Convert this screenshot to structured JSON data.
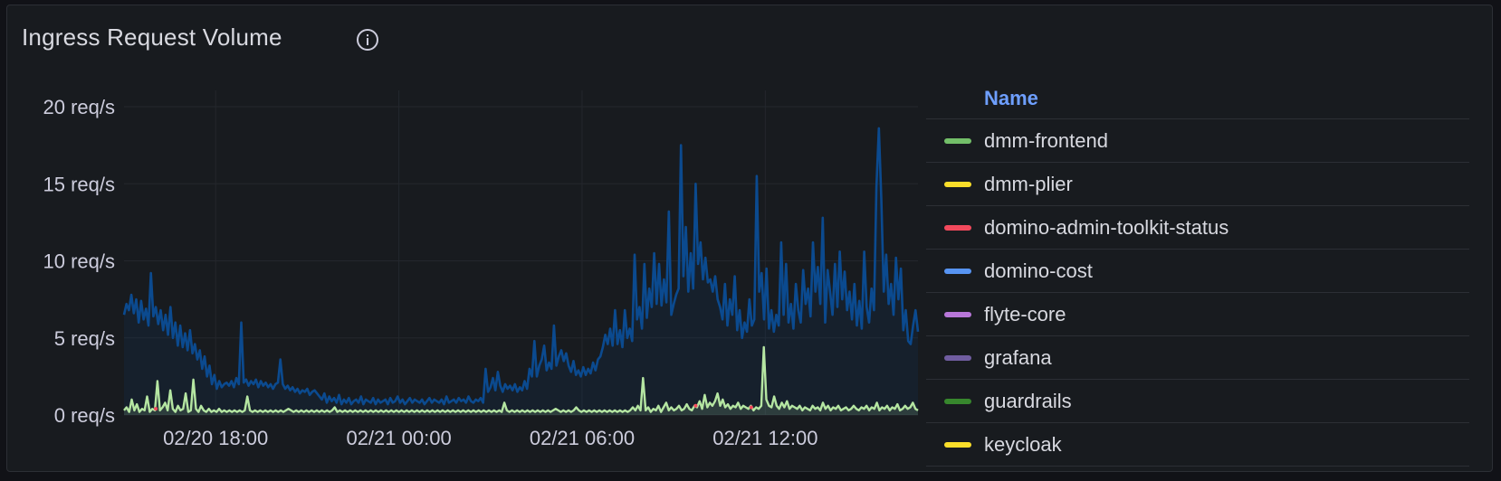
{
  "panel": {
    "title": "Ingress Request Volume"
  },
  "legend": {
    "header": "Name"
  },
  "chart_data": {
    "type": "area",
    "title": "Ingress Request Volume",
    "y_unit": "req/s",
    "ylim": [
      0,
      20
    ],
    "y_ticks": [
      {
        "value": 20,
        "label": "20 req/s"
      },
      {
        "value": 15,
        "label": "15 req/s"
      },
      {
        "value": 10,
        "label": "10 req/s"
      },
      {
        "value": 5,
        "label": "5 req/s"
      },
      {
        "value": 0,
        "label": "0 req/s"
      }
    ],
    "x_range": [
      "02/20 15:00",
      "02/21 17:00"
    ],
    "x_ticks": [
      "02/20 18:00",
      "02/21 00:00",
      "02/21 06:00",
      "02/21 12:00"
    ],
    "grid": true,
    "legend_placement": "right",
    "series": [
      {
        "name": "dmm-frontend",
        "color": "#73bf69"
      },
      {
        "name": "dmm-plier",
        "color": "#fade2a"
      },
      {
        "name": "domino-admin-toolkit-status",
        "color": "#f2495c"
      },
      {
        "name": "domino-cost",
        "color": "#5794f2"
      },
      {
        "name": "flyte-core",
        "color": "#b877d9"
      },
      {
        "name": "grafana",
        "color": "#705da0"
      },
      {
        "name": "guardrails",
        "color": "#37872d"
      },
      {
        "name": "keycloak",
        "color": "#fade2a"
      }
    ],
    "plotted_series": [
      {
        "color": "#0b4a8f",
        "values": [
          6.5,
          7.2,
          6.8,
          7.8,
          6.6,
          7.5,
          6.0,
          7.4,
          6.2,
          6.9,
          5.8,
          9.2,
          6.4,
          7.0,
          5.9,
          6.8,
          5.5,
          6.5,
          5.2,
          7.0,
          5.0,
          6.0,
          4.5,
          5.8,
          4.4,
          5.3,
          4.2,
          5.5,
          4.0,
          4.6,
          3.6,
          4.2,
          3.0,
          3.8,
          2.5,
          3.2,
          2.0,
          2.6,
          1.7,
          2.2,
          1.8,
          2.0,
          2.1,
          1.9,
          2.2,
          1.8,
          2.4,
          2.0,
          6.0,
          2.1,
          2.3,
          1.9,
          2.2,
          2.0,
          2.3,
          1.8,
          2.2,
          1.9,
          2.1,
          1.8,
          2.0,
          1.7,
          2.0,
          2.1,
          3.6,
          2.0,
          1.7,
          1.9,
          1.6,
          1.8,
          1.5,
          1.7,
          1.4,
          1.6,
          1.5,
          1.7,
          1.3,
          1.5,
          1.6,
          1.4,
          1.2,
          1.0,
          1.4,
          0.8,
          1.2,
          0.9,
          1.1,
          0.8,
          1.3,
          0.7,
          1.0,
          0.8,
          1.1,
          0.7,
          0.9,
          1.0,
          0.8,
          1.2,
          0.7,
          1.0,
          0.9,
          0.8,
          1.1,
          0.7,
          1.0,
          0.8,
          0.9,
          1.0,
          0.7,
          1.1,
          0.8,
          0.9,
          1.2,
          0.8,
          1.0,
          0.7,
          0.9,
          1.1,
          0.8,
          1.0,
          0.9,
          0.8,
          1.0,
          0.7,
          0.9,
          1.1,
          0.8,
          1.0,
          0.9,
          0.8,
          1.0,
          0.7,
          1.2,
          0.8,
          0.9,
          1.0,
          0.8,
          1.1,
          0.9,
          1.0,
          0.8,
          1.2,
          0.9,
          0.8,
          1.0,
          0.9,
          1.1,
          0.8,
          3.0,
          1.5,
          1.8,
          2.4,
          1.6,
          2.8,
          1.9,
          1.5,
          2.0,
          1.7,
          1.9,
          1.6,
          2.0,
          1.5,
          1.8,
          1.6,
          2.2,
          1.7,
          3.0,
          2.5,
          4.8,
          2.5,
          3.2,
          3.6,
          4.5,
          2.9,
          3.4,
          3.0,
          5.8,
          3.2,
          3.8,
          4.2,
          3.5,
          4.0,
          3.2,
          2.8,
          3.5,
          2.6,
          2.9,
          2.5,
          3.1,
          2.6,
          3.0,
          2.7,
          3.4,
          2.9,
          3.6,
          3.8,
          4.4,
          5.2,
          4.6,
          5.6,
          4.5,
          6.8,
          4.6,
          5.5,
          4.4,
          6.8,
          5.0,
          5.6,
          4.8,
          10.4,
          6.2,
          7.0,
          5.6,
          9.8,
          6.3,
          8.2,
          7.0,
          10.5,
          7.2,
          9.8,
          7.1,
          8.8,
          7.3,
          13.2,
          6.5,
          7.2,
          7.8,
          8.2,
          17.5,
          9.0,
          12.2,
          8.0,
          10.5,
          8.2,
          15.0,
          9.8,
          11.2,
          8.8,
          10.2,
          8.6,
          8.8,
          8.0,
          9.0,
          7.5,
          7.0,
          6.2,
          8.5,
          5.8,
          7.5,
          6.5,
          9.0,
          5.5,
          6.8,
          5.0,
          6.0,
          5.4,
          7.5,
          5.8,
          6.2,
          15.5,
          8.0,
          9.2,
          6.2,
          9.5,
          5.6,
          6.8,
          5.4,
          6.5,
          5.8,
          11.2,
          6.5,
          9.8,
          6.0,
          7.2,
          5.6,
          8.5,
          6.8,
          6.0,
          9.4,
          7.2,
          8.2,
          6.4,
          11.2,
          8.0,
          9.6,
          7.2,
          12.8,
          6.0,
          9.4,
          8.0,
          6.5,
          9.8,
          7.0,
          10.6,
          7.5,
          9.3,
          6.8,
          8.0,
          6.2,
          8.5,
          5.8,
          7.4,
          5.6,
          10.6,
          7.0,
          6.0,
          8.2,
          6.8,
          14.8,
          18.6,
          14.0,
          8.0,
          10.4,
          7.2,
          8.5,
          6.5,
          10.2,
          7.5,
          9.5,
          5.5,
          6.8,
          4.8,
          4.6,
          5.8,
          6.8,
          5.4
        ]
      },
      {
        "color": "#b5e6a2",
        "values": [
          0.3,
          0.5,
          0.2,
          1.0,
          0.3,
          0.7,
          0.2,
          0.4,
          0.3,
          1.2,
          0.2,
          0.4,
          0.3,
          2.2,
          0.3,
          0.5,
          0.8,
          0.3,
          1.6,
          0.4,
          0.2,
          0.6,
          0.3,
          0.4,
          1.4,
          0.2,
          0.3,
          2.3,
          0.4,
          0.2,
          0.6,
          0.3,
          0.2,
          0.4,
          0.2,
          0.3,
          0.2,
          0.4,
          0.2,
          0.3,
          0.2,
          0.3,
          0.2,
          0.3,
          0.2,
          0.3,
          0.2,
          0.3,
          1.2,
          0.3,
          0.2,
          0.3,
          0.2,
          0.3,
          0.2,
          0.3,
          0.2,
          0.3,
          0.2,
          0.3,
          0.2,
          0.3,
          0.2,
          0.3,
          0.4,
          0.3,
          0.2,
          0.3,
          0.2,
          0.3,
          0.2,
          0.3,
          0.2,
          0.3,
          0.2,
          0.3,
          0.2,
          0.3,
          0.2,
          0.3,
          0.2,
          0.3,
          0.5,
          0.2,
          0.3,
          0.2,
          0.3,
          0.2,
          0.3,
          0.2,
          0.3,
          0.2,
          0.3,
          0.2,
          0.3,
          0.2,
          0.3,
          0.2,
          0.3,
          0.2,
          0.3,
          0.2,
          0.3,
          0.2,
          0.3,
          0.2,
          0.3,
          0.2,
          0.3,
          0.2,
          0.3,
          0.2,
          0.3,
          0.2,
          0.3,
          0.2,
          0.3,
          0.2,
          0.3,
          0.2,
          0.3,
          0.2,
          0.3,
          0.2,
          0.3,
          0.2,
          0.3,
          0.2,
          0.3,
          0.2,
          0.3,
          0.2,
          0.3,
          0.2,
          0.3,
          0.2,
          0.3,
          0.2,
          0.3,
          0.2,
          0.3,
          0.2,
          0.3,
          0.2,
          0.3,
          0.2,
          0.3,
          0.2,
          0.8,
          0.3,
          0.2,
          0.3,
          0.2,
          0.3,
          0.2,
          0.3,
          0.2,
          0.3,
          0.2,
          0.3,
          0.2,
          0.3,
          0.2,
          0.3,
          0.2,
          0.3,
          0.2,
          0.3,
          0.4,
          0.3,
          0.2,
          0.3,
          0.2,
          0.3,
          0.2,
          0.3,
          0.5,
          0.3,
          0.2,
          0.3,
          0.2,
          0.3,
          0.2,
          0.3,
          0.2,
          0.3,
          0.2,
          0.3,
          0.2,
          0.3,
          0.2,
          0.3,
          0.2,
          0.3,
          0.2,
          0.3,
          0.2,
          0.3,
          0.5,
          0.3,
          0.6,
          0.3,
          2.4,
          0.3,
          0.5,
          0.2,
          0.4,
          0.3,
          0.6,
          0.2,
          0.5,
          0.8,
          0.3,
          0.5,
          0.3,
          0.4,
          0.6,
          0.3,
          0.4,
          0.7,
          0.4,
          0.3,
          0.6,
          0.5,
          0.9,
          0.4,
          1.3,
          0.5,
          0.8,
          0.6,
          0.9,
          1.4,
          0.6,
          1.0,
          0.5,
          0.7,
          0.4,
          0.6,
          0.5,
          0.8,
          0.4,
          0.6,
          0.5,
          0.4,
          0.6,
          0.3,
          0.5,
          0.4,
          0.6,
          4.4,
          1.0,
          0.6,
          0.5,
          1.2,
          0.6,
          0.4,
          0.8,
          0.5,
          0.9,
          0.4,
          0.6,
          0.5,
          0.4,
          0.6,
          0.3,
          0.5,
          0.4,
          0.3,
          0.6,
          0.4,
          0.5,
          0.3,
          0.8,
          0.4,
          0.6,
          0.3,
          0.5,
          0.4,
          0.6,
          0.3,
          0.4,
          0.5,
          0.3,
          0.4,
          0.6,
          0.4,
          0.3,
          0.5,
          0.4,
          0.6,
          0.3,
          0.5,
          0.4,
          0.8,
          0.3,
          0.5,
          0.4,
          0.6,
          0.3,
          0.5,
          0.4,
          0.7,
          0.3,
          0.4,
          0.6,
          0.4,
          0.5,
          0.8,
          0.4,
          0.3
        ]
      }
    ]
  }
}
